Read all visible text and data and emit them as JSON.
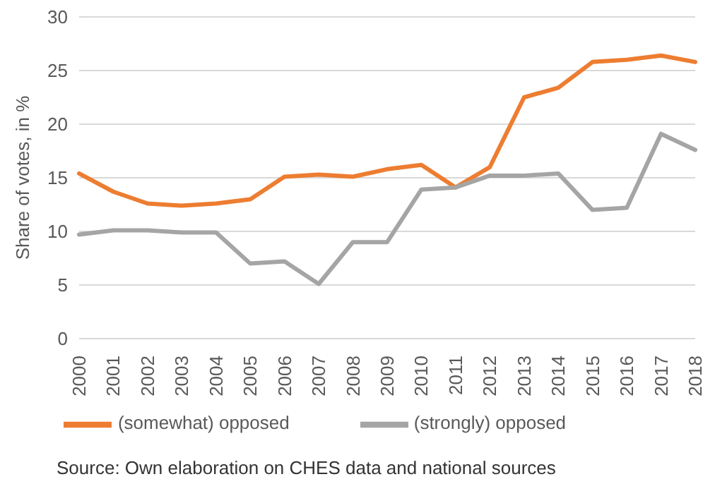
{
  "chart_data": {
    "type": "line",
    "ylabel": "Share of votes, in %",
    "categories": [
      "2000",
      "2001",
      "2002",
      "2003",
      "2004",
      "2005",
      "2006",
      "2007",
      "2008",
      "2009",
      "2010",
      "2011",
      "2012",
      "2013",
      "2014",
      "2015",
      "2016",
      "2017",
      "2018"
    ],
    "series": [
      {
        "name": "(somewhat) opposed",
        "color": "#ed7d31",
        "values": [
          15.4,
          13.7,
          12.6,
          12.4,
          12.6,
          13.0,
          15.1,
          15.3,
          15.1,
          15.8,
          16.2,
          14.1,
          16.0,
          22.5,
          23.4,
          25.8,
          26.0,
          26.4,
          25.8
        ]
      },
      {
        "name": "(strongly) opposed",
        "color": "#a5a5a5",
        "values": [
          9.7,
          10.1,
          10.1,
          9.9,
          9.9,
          7.0,
          7.2,
          5.1,
          9.0,
          9.0,
          13.9,
          14.1,
          15.2,
          15.2,
          15.4,
          12.0,
          12.2,
          19.1,
          17.6
        ]
      }
    ],
    "ylim": [
      0,
      30
    ],
    "yticks": [
      0,
      5,
      10,
      15,
      20,
      25,
      30
    ],
    "grid": "y",
    "legend": "bottom",
    "marker": "none",
    "line_style": "solid",
    "annotations": [
      "Source: Own elaboration on CHES data and national sources"
    ]
  }
}
